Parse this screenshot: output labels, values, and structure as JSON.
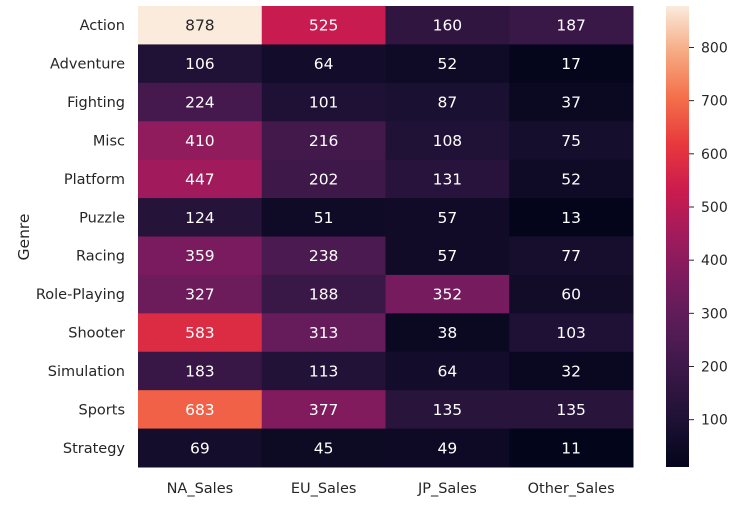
{
  "chart_data": {
    "type": "heatmap",
    "title": "",
    "xlabel": "",
    "ylabel": "Genre",
    "columns": [
      "NA_Sales",
      "EU_Sales",
      "JP_Sales",
      "Other_Sales"
    ],
    "rows": [
      "Action",
      "Adventure",
      "Fighting",
      "Misc",
      "Platform",
      "Puzzle",
      "Racing",
      "Role-Playing",
      "Shooter",
      "Simulation",
      "Sports",
      "Strategy"
    ],
    "values": [
      [
        878,
        525,
        160,
        187
      ],
      [
        106,
        64,
        52,
        17
      ],
      [
        224,
        101,
        87,
        37
      ],
      [
        410,
        216,
        108,
        75
      ],
      [
        447,
        202,
        131,
        52
      ],
      [
        124,
        51,
        57,
        13
      ],
      [
        359,
        238,
        57,
        77
      ],
      [
        327,
        188,
        352,
        60
      ],
      [
        583,
        313,
        38,
        103
      ],
      [
        183,
        113,
        64,
        32
      ],
      [
        683,
        377,
        135,
        135
      ],
      [
        69,
        45,
        49,
        11
      ]
    ],
    "colormap": "rocket",
    "color_range": [
      11,
      878
    ],
    "colorbar_ticks": [
      100,
      200,
      300,
      400,
      500,
      600,
      700,
      800
    ],
    "annotations": true,
    "grid": false,
    "legend": "colorbar-right"
  }
}
